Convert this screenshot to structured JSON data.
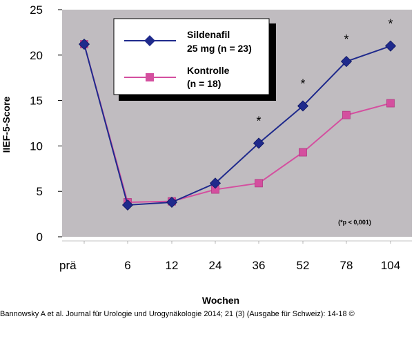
{
  "chart_data": {
    "type": "line",
    "categories": [
      "prä",
      "6",
      "12",
      "24",
      "36",
      "52",
      "78",
      "104"
    ],
    "xlabel": "Wochen",
    "ylabel": "IIEF-5-Score",
    "ylim": [
      0,
      25
    ],
    "yticks": [
      "0",
      "5",
      "10",
      "15",
      "20",
      "25"
    ],
    "grid": false,
    "legend_position": "top-center",
    "series": [
      {
        "name_line1": "Sildenafil",
        "name_line2": "25 mg (n = 23)",
        "color": "#1f2a8c",
        "marker": "diamond",
        "values": [
          21.2,
          3.5,
          3.8,
          5.9,
          10.3,
          14.4,
          19.3,
          21.0
        ]
      },
      {
        "name_line1": "Kontrolle",
        "name_line2": "(n = 18)",
        "color": "#d44f9f",
        "marker": "square",
        "values": [
          21.2,
          3.8,
          3.9,
          5.2,
          5.9,
          9.3,
          13.4,
          14.7
        ]
      }
    ],
    "significance_marker": "*",
    "significance_categories": [
      "36",
      "52",
      "78",
      "104"
    ],
    "annotation": "(*p < 0,001)",
    "plot_background": "#c0bcc0"
  },
  "citation": "Bannowsky A et al. Journal für Urologie und Urogynäkologie 2014; 21 (3) (Ausgabe für Schweiz): 14-18 ©"
}
